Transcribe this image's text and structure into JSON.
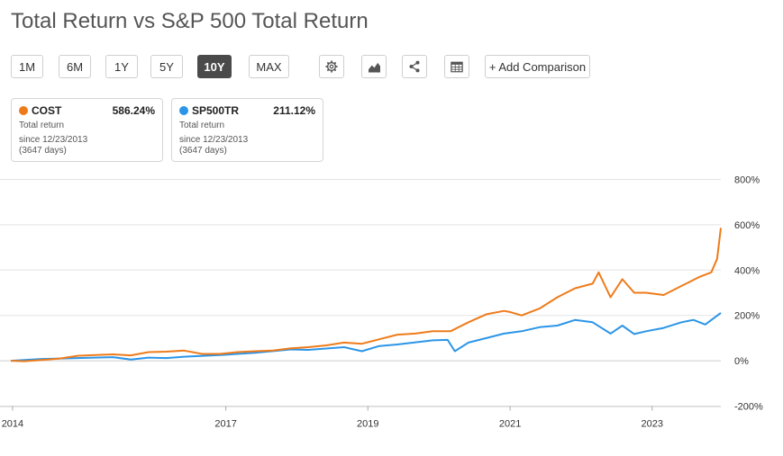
{
  "title": "Total Return vs S&P 500 Total Return",
  "periods": [
    "1M",
    "6M",
    "1Y",
    "5Y",
    "10Y",
    "MAX"
  ],
  "active_period": "10Y",
  "tools": {
    "settings_icon": "gear-icon",
    "chart_type_icon": "mountain-chart-icon",
    "share_icon": "share-icon",
    "table_icon": "table-icon"
  },
  "add_comparison_label": "+ Add Comparison",
  "cards": [
    {
      "symbol": "COST",
      "value": "586.24%",
      "color": "#ee7b1a",
      "label": "Total return",
      "since": "since 12/23/2013",
      "days": "(3647 days)"
    },
    {
      "symbol": "SP500TR",
      "value": "211.12%",
      "color": "#2b95e8",
      "label": "Total return",
      "since": "since 12/23/2013",
      "days": "(3647 days)"
    }
  ],
  "chart_data": {
    "type": "line",
    "title": "Total Return vs S&P 500 Total Return",
    "xlabel": "",
    "ylabel": "",
    "x_range": [
      "2013-12-23",
      "2023-12-20"
    ],
    "ylim": [
      -200,
      800
    ],
    "y_ticks": [
      800,
      600,
      400,
      200,
      0,
      -200
    ],
    "y_tick_labels": [
      "800%",
      "600%",
      "400%",
      "200%",
      "0%",
      "-200%"
    ],
    "x_ticks": [
      "2014",
      "2017",
      "2019",
      "2021",
      "2023"
    ],
    "grid": true,
    "series": [
      {
        "name": "COST",
        "color": "#ee7b1a",
        "points": [
          [
            "2013-12-23",
            0
          ],
          [
            "2014-03-01",
            -2
          ],
          [
            "2014-06-01",
            3
          ],
          [
            "2014-09-01",
            10
          ],
          [
            "2014-12-01",
            22
          ],
          [
            "2015-03-01",
            25
          ],
          [
            "2015-06-01",
            28
          ],
          [
            "2015-09-01",
            24
          ],
          [
            "2015-12-01",
            38
          ],
          [
            "2016-03-01",
            40
          ],
          [
            "2016-06-01",
            45
          ],
          [
            "2016-09-01",
            30
          ],
          [
            "2016-12-01",
            30
          ],
          [
            "2017-03-01",
            38
          ],
          [
            "2017-06-01",
            42
          ],
          [
            "2017-09-01",
            45
          ],
          [
            "2017-12-01",
            55
          ],
          [
            "2018-03-01",
            60
          ],
          [
            "2018-06-01",
            68
          ],
          [
            "2018-09-01",
            80
          ],
          [
            "2018-12-01",
            75
          ],
          [
            "2019-03-01",
            95
          ],
          [
            "2019-06-01",
            115
          ],
          [
            "2019-09-01",
            120
          ],
          [
            "2019-12-01",
            130
          ],
          [
            "2020-03-01",
            130
          ],
          [
            "2020-06-01",
            170
          ],
          [
            "2020-09-01",
            205
          ],
          [
            "2020-12-01",
            220
          ],
          [
            "2021-01-01",
            215
          ],
          [
            "2021-03-01",
            200
          ],
          [
            "2021-06-01",
            230
          ],
          [
            "2021-09-01",
            280
          ],
          [
            "2021-12-01",
            320
          ],
          [
            "2022-03-01",
            340
          ],
          [
            "2022-04-01",
            390
          ],
          [
            "2022-06-01",
            280
          ],
          [
            "2022-08-01",
            360
          ],
          [
            "2022-10-01",
            300
          ],
          [
            "2022-12-01",
            300
          ],
          [
            "2023-03-01",
            290
          ],
          [
            "2023-06-01",
            330
          ],
          [
            "2023-09-01",
            370
          ],
          [
            "2023-11-01",
            390
          ],
          [
            "2023-12-01",
            450
          ],
          [
            "2023-12-20",
            586
          ]
        ]
      },
      {
        "name": "SP500TR",
        "color": "#2b95e8",
        "points": [
          [
            "2013-12-23",
            0
          ],
          [
            "2014-06-01",
            8
          ],
          [
            "2014-12-01",
            12
          ],
          [
            "2015-06-01",
            16
          ],
          [
            "2015-09-01",
            5
          ],
          [
            "2015-12-01",
            14
          ],
          [
            "2016-03-01",
            12
          ],
          [
            "2016-06-01",
            18
          ],
          [
            "2016-12-01",
            25
          ],
          [
            "2017-06-01",
            35
          ],
          [
            "2017-12-01",
            50
          ],
          [
            "2018-03-01",
            48
          ],
          [
            "2018-09-01",
            60
          ],
          [
            "2018-12-01",
            42
          ],
          [
            "2019-03-01",
            65
          ],
          [
            "2019-06-01",
            72
          ],
          [
            "2019-12-01",
            90
          ],
          [
            "2020-02-15",
            92
          ],
          [
            "2020-03-23",
            42
          ],
          [
            "2020-06-01",
            80
          ],
          [
            "2020-09-01",
            100
          ],
          [
            "2020-12-01",
            120
          ],
          [
            "2021-03-01",
            130
          ],
          [
            "2021-06-01",
            148
          ],
          [
            "2021-09-01",
            155
          ],
          [
            "2021-12-01",
            180
          ],
          [
            "2022-03-01",
            170
          ],
          [
            "2022-06-01",
            120
          ],
          [
            "2022-08-01",
            155
          ],
          [
            "2022-10-01",
            118
          ],
          [
            "2022-12-01",
            130
          ],
          [
            "2023-03-01",
            145
          ],
          [
            "2023-06-01",
            170
          ],
          [
            "2023-08-01",
            180
          ],
          [
            "2023-10-01",
            160
          ],
          [
            "2023-12-20",
            211
          ]
        ]
      }
    ]
  }
}
